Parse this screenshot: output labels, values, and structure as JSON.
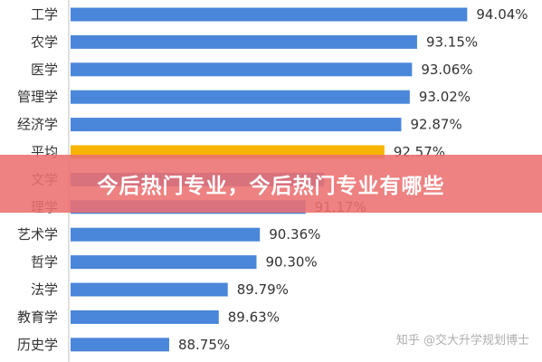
{
  "chart_data": {
    "type": "bar",
    "orientation": "horizontal",
    "categories": [
      "工学",
      "农学",
      "医学",
      "管理学",
      "经济学",
      "平均",
      "文学",
      "理学",
      "艺术学",
      "哲学",
      "法学",
      "教育学",
      "历史学"
    ],
    "values": [
      94.04,
      93.15,
      93.06,
      93.02,
      92.87,
      92.57,
      91.5,
      91.17,
      90.36,
      90.3,
      89.79,
      89.63,
      88.75
    ],
    "value_labels": [
      "94.04%",
      "93.15%",
      "93.06%",
      "93.02%",
      "92.87%",
      "92.57%",
      "",
      "91.17%",
      "90.36%",
      "90.30%",
      "89.79%",
      "89.63%",
      "88.75%"
    ],
    "highlight_category": "平均",
    "xlim": [
      87.0,
      94.5
    ],
    "grid": false,
    "legend": "none",
    "colors": {
      "bar": "#4a86d9",
      "highlight": "#f7b500"
    }
  },
  "overlay": {
    "banner_title": "今后热门专业，今后热门专业有哪些",
    "banner_color": "#ec7070"
  },
  "watermark": {
    "text": "知乎 @交大升学规划博士"
  }
}
